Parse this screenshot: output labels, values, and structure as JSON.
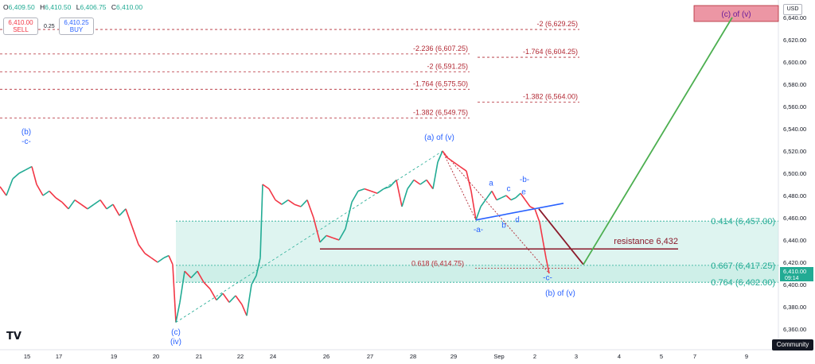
{
  "header": {
    "ohlc": [
      {
        "k": "O",
        "v": "6,409.50"
      },
      {
        "k": "H",
        "v": "6,410.50"
      },
      {
        "k": "L",
        "v": "6,406.75"
      },
      {
        "k": "C",
        "v": "6,410.00"
      }
    ],
    "sell_price": "6,410.00",
    "sell_label": "SELL",
    "buy_price": "6,410.25",
    "buy_label": "BUY",
    "spread": "0.25",
    "currency": "USD",
    "community": "Community",
    "logo": "TV"
  },
  "chart_data": {
    "type": "line",
    "price_scale": {
      "min": 6360,
      "max": 6640,
      "step": 20
    },
    "y_ticks": [
      "6,640.00",
      "6,620.00",
      "6,600.00",
      "6,580.00",
      "6,560.00",
      "6,540.00",
      "6,520.00",
      "6,500.00",
      "6,480.00",
      "6,460.00",
      "6,440.00",
      "6,420.00",
      "6,400.00",
      "6,380.00",
      "6,360.00"
    ],
    "x_ticks": [
      "15",
      "17",
      "19",
      "20",
      "21",
      "22",
      "24",
      "26",
      "27",
      "28",
      "29",
      "Sep",
      "2",
      "3",
      "4",
      "5",
      "7",
      "9"
    ],
    "last_price": {
      "value": 6410,
      "label": "6,410.00",
      "countdown": "09:14"
    },
    "price_series": [
      {
        "x": 0,
        "y": 6488
      },
      {
        "x": 8,
        "y": 6480
      },
      {
        "x": 16,
        "y": 6495
      },
      {
        "x": 24,
        "y": 6500
      },
      {
        "x": 32,
        "y": 6503
      },
      {
        "x": 40,
        "y": 6506
      },
      {
        "x": 46,
        "y": 6490
      },
      {
        "x": 54,
        "y": 6480
      },
      {
        "x": 62,
        "y": 6484
      },
      {
        "x": 70,
        "y": 6478
      },
      {
        "x": 78,
        "y": 6474
      },
      {
        "x": 86,
        "y": 6468
      },
      {
        "x": 94,
        "y": 6476
      },
      {
        "x": 102,
        "y": 6472
      },
      {
        "x": 110,
        "y": 6468
      },
      {
        "x": 118,
        "y": 6472
      },
      {
        "x": 126,
        "y": 6476
      },
      {
        "x": 134,
        "y": 6468
      },
      {
        "x": 142,
        "y": 6472
      },
      {
        "x": 150,
        "y": 6462
      },
      {
        "x": 158,
        "y": 6468
      },
      {
        "x": 166,
        "y": 6452
      },
      {
        "x": 174,
        "y": 6436
      },
      {
        "x": 182,
        "y": 6428
      },
      {
        "x": 190,
        "y": 6424
      },
      {
        "x": 198,
        "y": 6420
      },
      {
        "x": 206,
        "y": 6424
      },
      {
        "x": 212,
        "y": 6426
      },
      {
        "x": 217,
        "y": 6418
      },
      {
        "x": 221,
        "y": 6366
      },
      {
        "x": 226,
        "y": 6384
      },
      {
        "x": 232,
        "y": 6412
      },
      {
        "x": 240,
        "y": 6406
      },
      {
        "x": 248,
        "y": 6412
      },
      {
        "x": 256,
        "y": 6402
      },
      {
        "x": 264,
        "y": 6396
      },
      {
        "x": 272,
        "y": 6386
      },
      {
        "x": 280,
        "y": 6392
      },
      {
        "x": 288,
        "y": 6384
      },
      {
        "x": 296,
        "y": 6390
      },
      {
        "x": 304,
        "y": 6382
      },
      {
        "x": 310,
        "y": 6372
      },
      {
        "x": 316,
        "y": 6400
      },
      {
        "x": 322,
        "y": 6408
      },
      {
        "x": 327,
        "y": 6424
      },
      {
        "x": 330,
        "y": 6490
      },
      {
        "x": 338,
        "y": 6486
      },
      {
        "x": 346,
        "y": 6476
      },
      {
        "x": 354,
        "y": 6472
      },
      {
        "x": 362,
        "y": 6476
      },
      {
        "x": 370,
        "y": 6472
      },
      {
        "x": 378,
        "y": 6470
      },
      {
        "x": 386,
        "y": 6476
      },
      {
        "x": 394,
        "y": 6460
      },
      {
        "x": 402,
        "y": 6438
      },
      {
        "x": 410,
        "y": 6444
      },
      {
        "x": 418,
        "y": 6442
      },
      {
        "x": 426,
        "y": 6440
      },
      {
        "x": 434,
        "y": 6450
      },
      {
        "x": 442,
        "y": 6474
      },
      {
        "x": 450,
        "y": 6484
      },
      {
        "x": 458,
        "y": 6486
      },
      {
        "x": 466,
        "y": 6484
      },
      {
        "x": 474,
        "y": 6482
      },
      {
        "x": 482,
        "y": 6486
      },
      {
        "x": 490,
        "y": 6488
      },
      {
        "x": 498,
        "y": 6494
      },
      {
        "x": 505,
        "y": 6470
      },
      {
        "x": 512,
        "y": 6486
      },
      {
        "x": 520,
        "y": 6494
      },
      {
        "x": 528,
        "y": 6490
      },
      {
        "x": 536,
        "y": 6494
      },
      {
        "x": 544,
        "y": 6486
      },
      {
        "x": 550,
        "y": 6510
      },
      {
        "x": 556,
        "y": 6520
      },
      {
        "x": 562,
        "y": 6514
      },
      {
        "x": 570,
        "y": 6510
      },
      {
        "x": 578,
        "y": 6506
      },
      {
        "x": 586,
        "y": 6502
      },
      {
        "x": 592,
        "y": 6484
      },
      {
        "x": 598,
        "y": 6458
      },
      {
        "x": 604,
        "y": 6470
      },
      {
        "x": 612,
        "y": 6478
      },
      {
        "x": 618,
        "y": 6484
      },
      {
        "x": 624,
        "y": 6476
      },
      {
        "x": 630,
        "y": 6478
      },
      {
        "x": 636,
        "y": 6480
      },
      {
        "x": 642,
        "y": 6476
      },
      {
        "x": 648,
        "y": 6478
      },
      {
        "x": 654,
        "y": 6482
      },
      {
        "x": 660,
        "y": 6476
      },
      {
        "x": 666,
        "y": 6470
      },
      {
        "x": 672,
        "y": 6468
      },
      {
        "x": 678,
        "y": 6456
      },
      {
        "x": 682,
        "y": 6440
      },
      {
        "x": 686,
        "y": 6424
      },
      {
        "x": 690,
        "y": 6410
      }
    ],
    "fib_lines": [
      {
        "label": "-2 (6,629.25)",
        "value": 6629.25,
        "x0": 0,
        "x1": 728,
        "label_at": "right"
      },
      {
        "label": "-2.236 (6,607.25)",
        "value": 6607.25,
        "x0": 0,
        "x1": 590,
        "label_at": "right"
      },
      {
        "label": "-1.764 (6,604.25)",
        "value": 6604.25,
        "x0": 600,
        "x1": 728,
        "label_at": "right"
      },
      {
        "label": "-2 (6,591.25)",
        "value": 6591.25,
        "x0": 0,
        "x1": 590,
        "label_at": "right"
      },
      {
        "label": "-1.764 (6,575.50)",
        "value": 6575.5,
        "x0": 0,
        "x1": 590,
        "label_at": "right"
      },
      {
        "label": "-1.382 (6,564.00)",
        "value": 6564,
        "x0": 600,
        "x1": 728,
        "label_at": "right"
      },
      {
        "label": "-1.382 (6,549.75)",
        "value": 6549.75,
        "x0": 0,
        "x1": 590,
        "label_at": "right"
      }
    ],
    "zones": [
      {
        "label": "0.414 (6,457.00)",
        "top": 6457,
        "bottom": 6402,
        "x0": 221
      },
      {
        "label": "0.667 (6,417.25)",
        "top": 6417.25,
        "bottom": 6402,
        "x0": 221
      },
      {
        "label": "0.764 (6,402.00)",
        "value": 6402
      }
    ],
    "retracement_label": "0.618 (6,414.75)",
    "resistance": {
      "label": "resistance 6,432",
      "value": 6432
    },
    "target_box": {
      "label": "(c) of (v)",
      "top": 6642,
      "bottom": 6630
    },
    "wave_labels": [
      {
        "text": "(b)",
        "sub": "-c-",
        "x": 33,
        "y": 6535
      },
      {
        "text": "(a) of (v)",
        "x": 552,
        "y": 6530
      },
      {
        "text": "(c)",
        "sub": "(iv)",
        "x": 221,
        "y": 6355
      },
      {
        "text": "(b) of (v)",
        "x": 704,
        "y": 6390
      },
      {
        "text": "-c-",
        "x": 688,
        "y": 6404
      },
      {
        "text": "-a-",
        "x": 601,
        "y": 6447
      },
      {
        "text": "a",
        "x": 617,
        "y": 6489
      },
      {
        "text": "b",
        "x": 633,
        "y": 6451
      },
      {
        "text": "c",
        "x": 639,
        "y": 6484
      },
      {
        "text": "-b-",
        "x": 659,
        "y": 6492
      },
      {
        "text": "e",
        "x": 658,
        "y": 6481
      },
      {
        "text": "d",
        "x": 650,
        "y": 6456
      }
    ],
    "projection": [
      {
        "x": 733,
        "y": 6418
      },
      {
        "x": 920,
        "y": 6640
      }
    ],
    "ab_decline": [
      {
        "x": 677,
        "y": 6468
      },
      {
        "x": 733,
        "y": 6418
      }
    ]
  },
  "colors": {
    "bull": "#22ab94",
    "bear": "#f23645",
    "fib": "#b22833",
    "zone": "#c3ebe3",
    "zone_line": "#22ab94",
    "blue_label": "#2962ff",
    "trend_green": "#4caf50",
    "resistance": "#8b1a2b",
    "target": "#e57385"
  }
}
